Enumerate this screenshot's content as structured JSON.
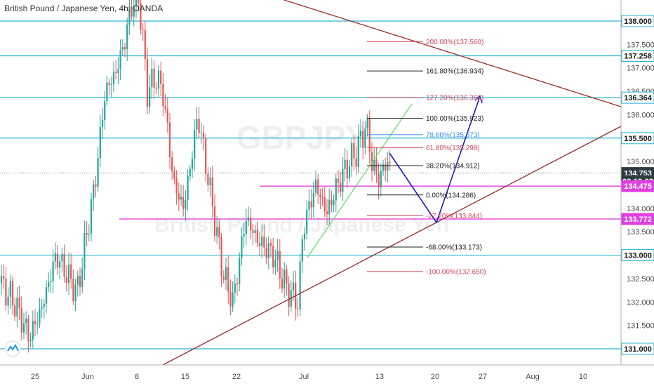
{
  "header": {
    "title": "British Pound / Japanese Yen, 4h, OANDA"
  },
  "watermark": {
    "symbol": "GBPJPY",
    "name": "British Pound / Japanese Yen"
  },
  "colors": {
    "cyan": "#2ab4d4",
    "magenta": "#e040e0",
    "brown": "#9b2c2c",
    "green": "#5de15d",
    "blue": "#1a1acc",
    "fibBlack": "#222222",
    "fibRed": "#d9485a",
    "fibBlue": "#3d8bfd",
    "up": "#26a69a",
    "down": "#ef5350"
  },
  "chart_data": {
    "type": "candlestick",
    "x_axis": {
      "ticks": [
        "25",
        "Jun",
        "8",
        "15",
        "22",
        "Jul",
        "13",
        "20",
        "27",
        "Aug",
        "10"
      ]
    },
    "y_axis": {
      "range": [
        130.76,
        138.38
      ],
      "ticks": [
        "131.000",
        "131.500",
        "132.000",
        "132.500",
        "133.000",
        "133.500",
        "134.000",
        "134.500",
        "135.000",
        "135.500",
        "136.000",
        "136.500",
        "137.000",
        "137.500",
        "138.000"
      ]
    },
    "horizontal_levels": [
      138.0,
      137.258,
      136.364,
      135.5,
      133.0,
      131.0
    ],
    "current_price_line": 134.753,
    "magenta_levels": [
      134.475,
      133.772
    ],
    "price_tags": [
      {
        "label": "138.000",
        "price": 138.0,
        "style": "outline"
      },
      {
        "label": "137.258",
        "price": 137.258,
        "style": "outline"
      },
      {
        "label": "136.364",
        "price": 136.364,
        "style": "outline"
      },
      {
        "label": "135.500",
        "price": 135.5,
        "style": "outline"
      },
      {
        "label": "134.753",
        "price": 134.753,
        "style": "dark"
      },
      {
        "label": "02:18:03",
        "price": 134.58,
        "style": "dark-plain"
      },
      {
        "label": "134.475",
        "price": 134.475,
        "style": "magenta"
      },
      {
        "label": "133.772",
        "price": 133.772,
        "style": "magenta"
      },
      {
        "label": "133.000",
        "price": 133.0,
        "style": "outline"
      },
      {
        "label": "131.000",
        "price": 131.0,
        "style": "outline"
      }
    ],
    "fib_levels": [
      {
        "label": "200.00%(137.560)",
        "price": 137.56,
        "color": "#d9485a"
      },
      {
        "label": "161.80%(136.934)",
        "price": 136.934,
        "color": "#222222"
      },
      {
        "label": "127.20%(136.368)",
        "price": 136.368,
        "color": "#d9485a"
      },
      {
        "label": "100.00%(135.923)",
        "price": 135.923,
        "color": "#222222"
      },
      {
        "label": "78.60%(135.573)",
        "price": 135.573,
        "color": "#3d8bfd"
      },
      {
        "label": "61.80%(135.298)",
        "price": 135.298,
        "color": "#d9485a"
      },
      {
        "label": "38.20%(134.912)",
        "price": 134.912,
        "color": "#222222"
      },
      {
        "label": "0.00%(134.286)",
        "price": 134.286,
        "color": "#222222"
      },
      {
        "label": "-27.20%(133.844)",
        "price": 133.844,
        "color": "#d9485a"
      },
      {
        "label": "-68.00%(133.173)",
        "price": 133.173,
        "color": "#222222"
      },
      {
        "label": "-100.00%(132.650)",
        "price": 132.65,
        "color": "#d9485a"
      }
    ],
    "grid": false
  }
}
